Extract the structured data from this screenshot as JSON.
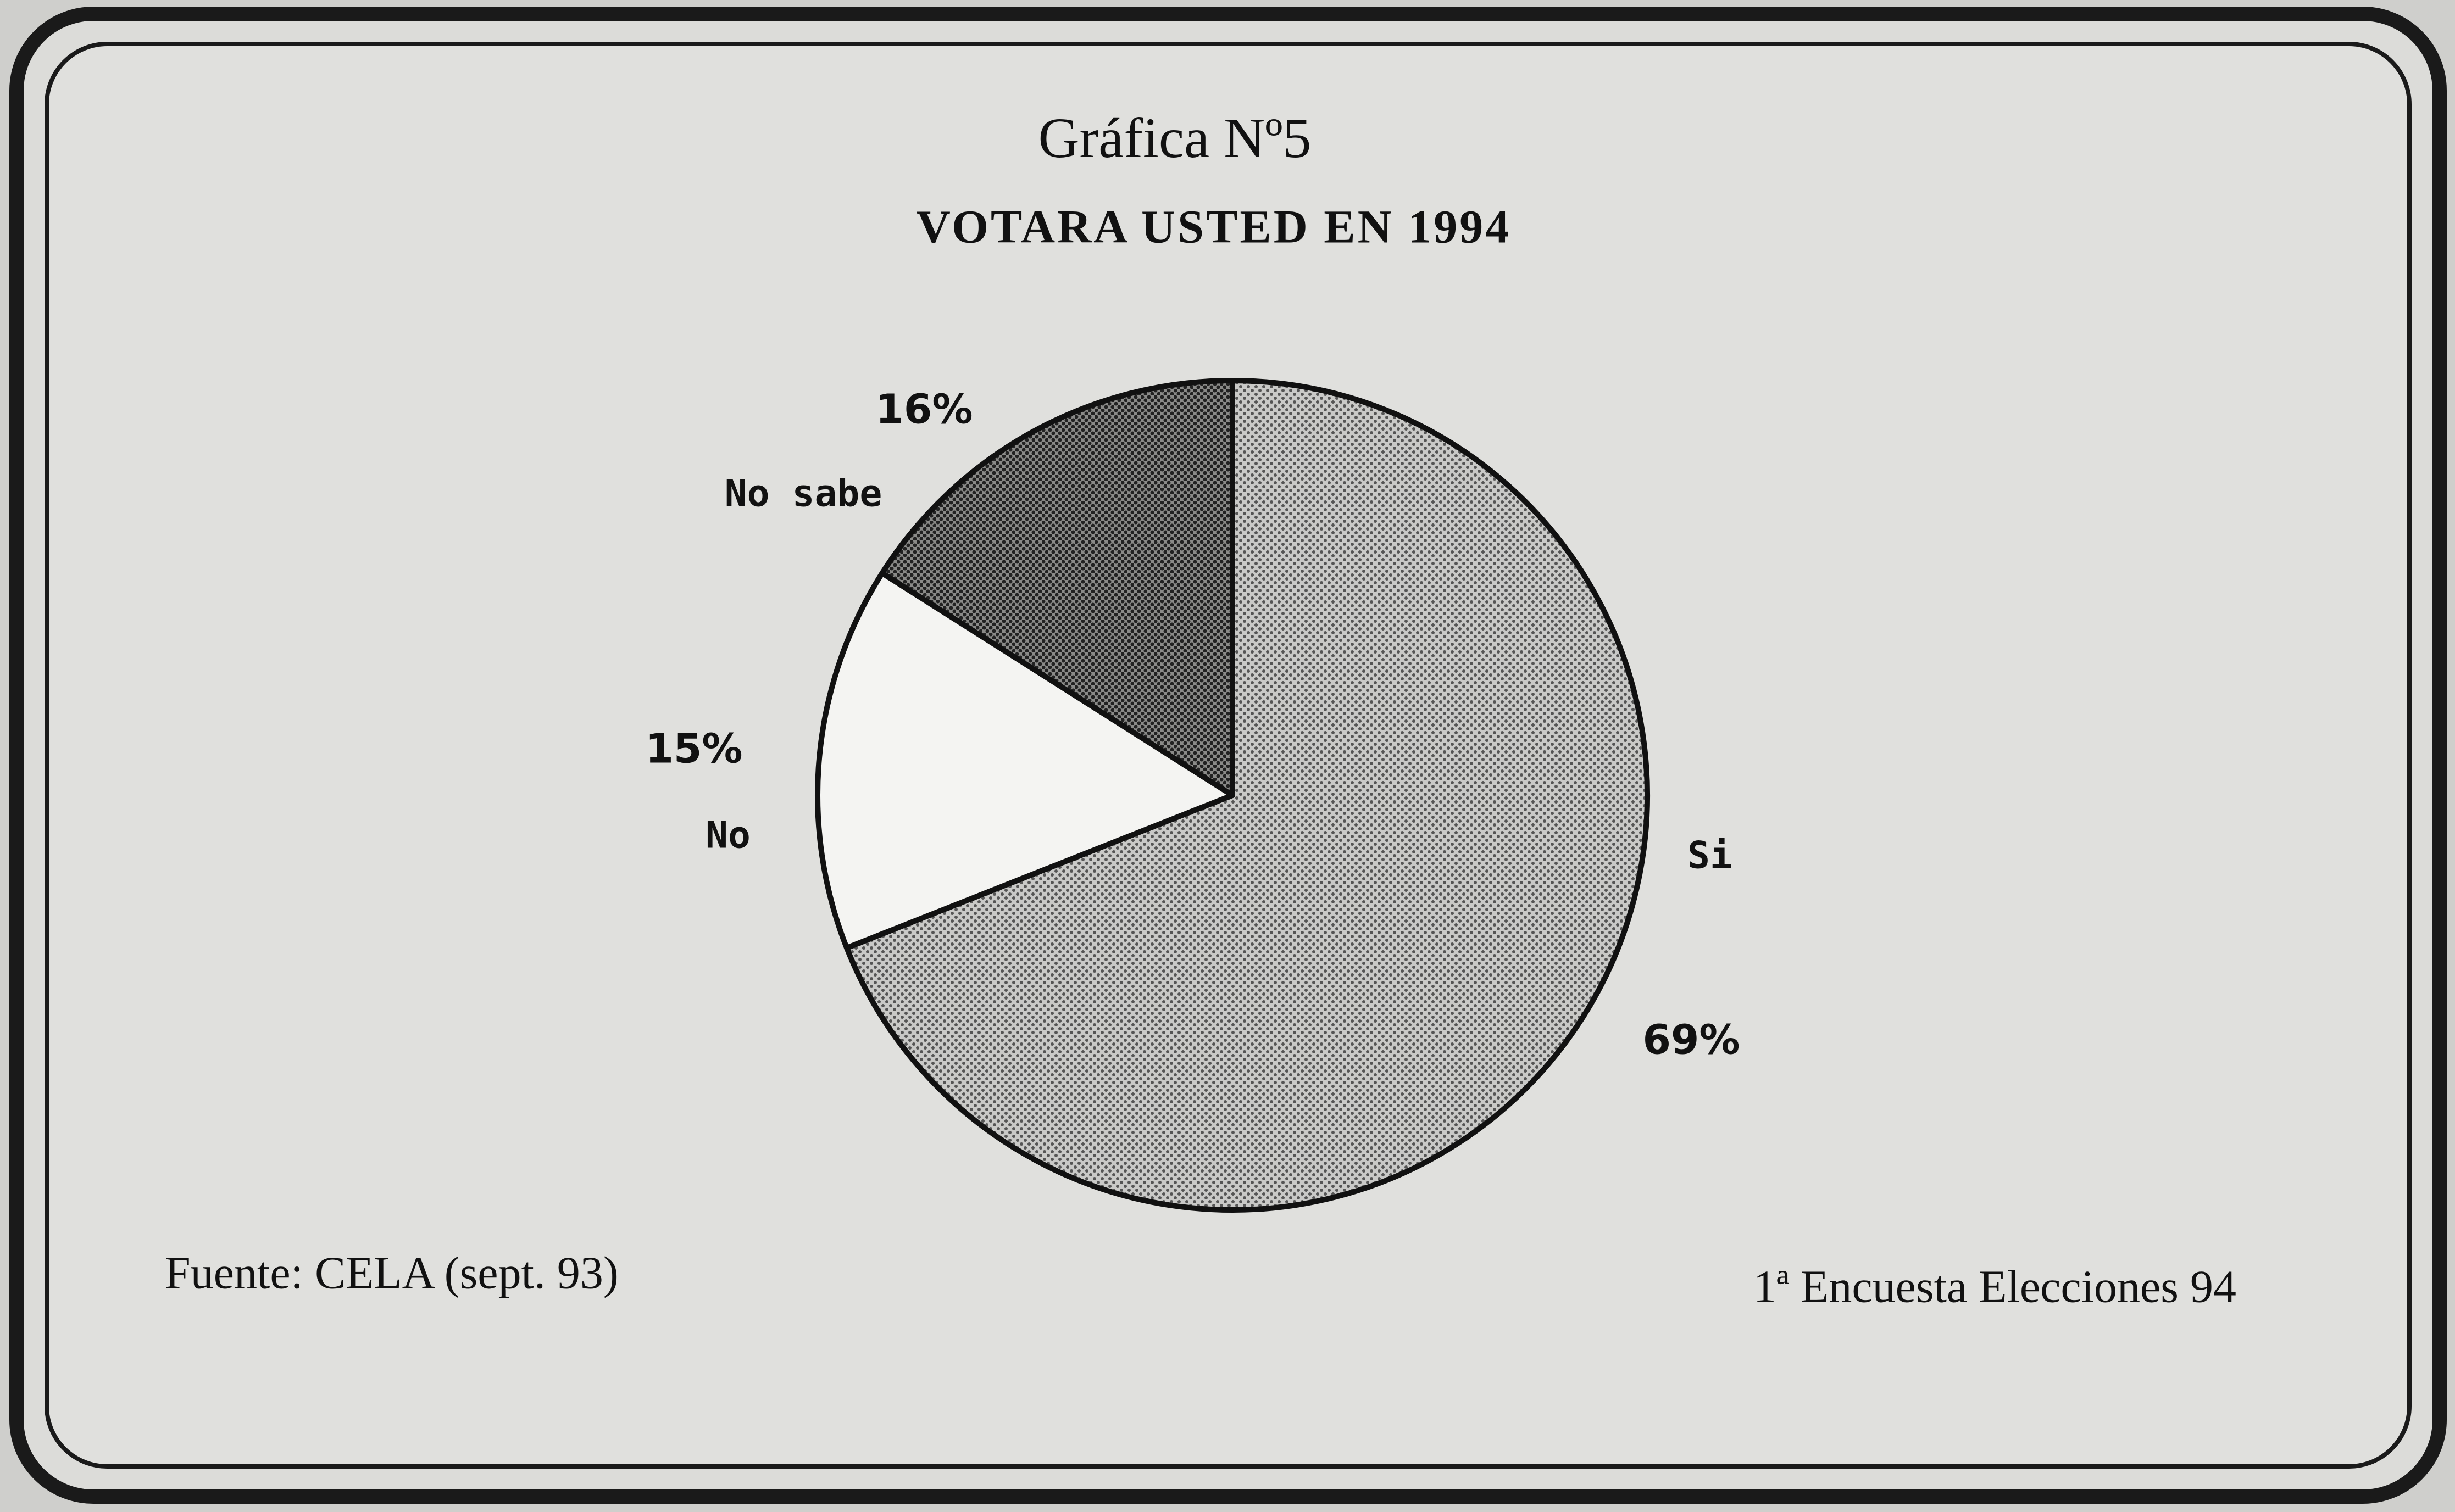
{
  "chart_data": {
    "type": "pie",
    "title": "Gráfica Nº5",
    "subtitle": "VOTARA USTED EN 1994",
    "categories": [
      "Si",
      "No",
      "No sabe"
    ],
    "values": [
      69,
      15,
      16
    ],
    "value_labels": [
      "69%",
      "15%",
      "16%"
    ],
    "colors": [
      "#c9c9c7",
      "#f4f4f2",
      "#8a8a88"
    ],
    "source": "Fuente: CELA (sept. 93)",
    "note": "1ª Encuesta Elecciones 94"
  }
}
